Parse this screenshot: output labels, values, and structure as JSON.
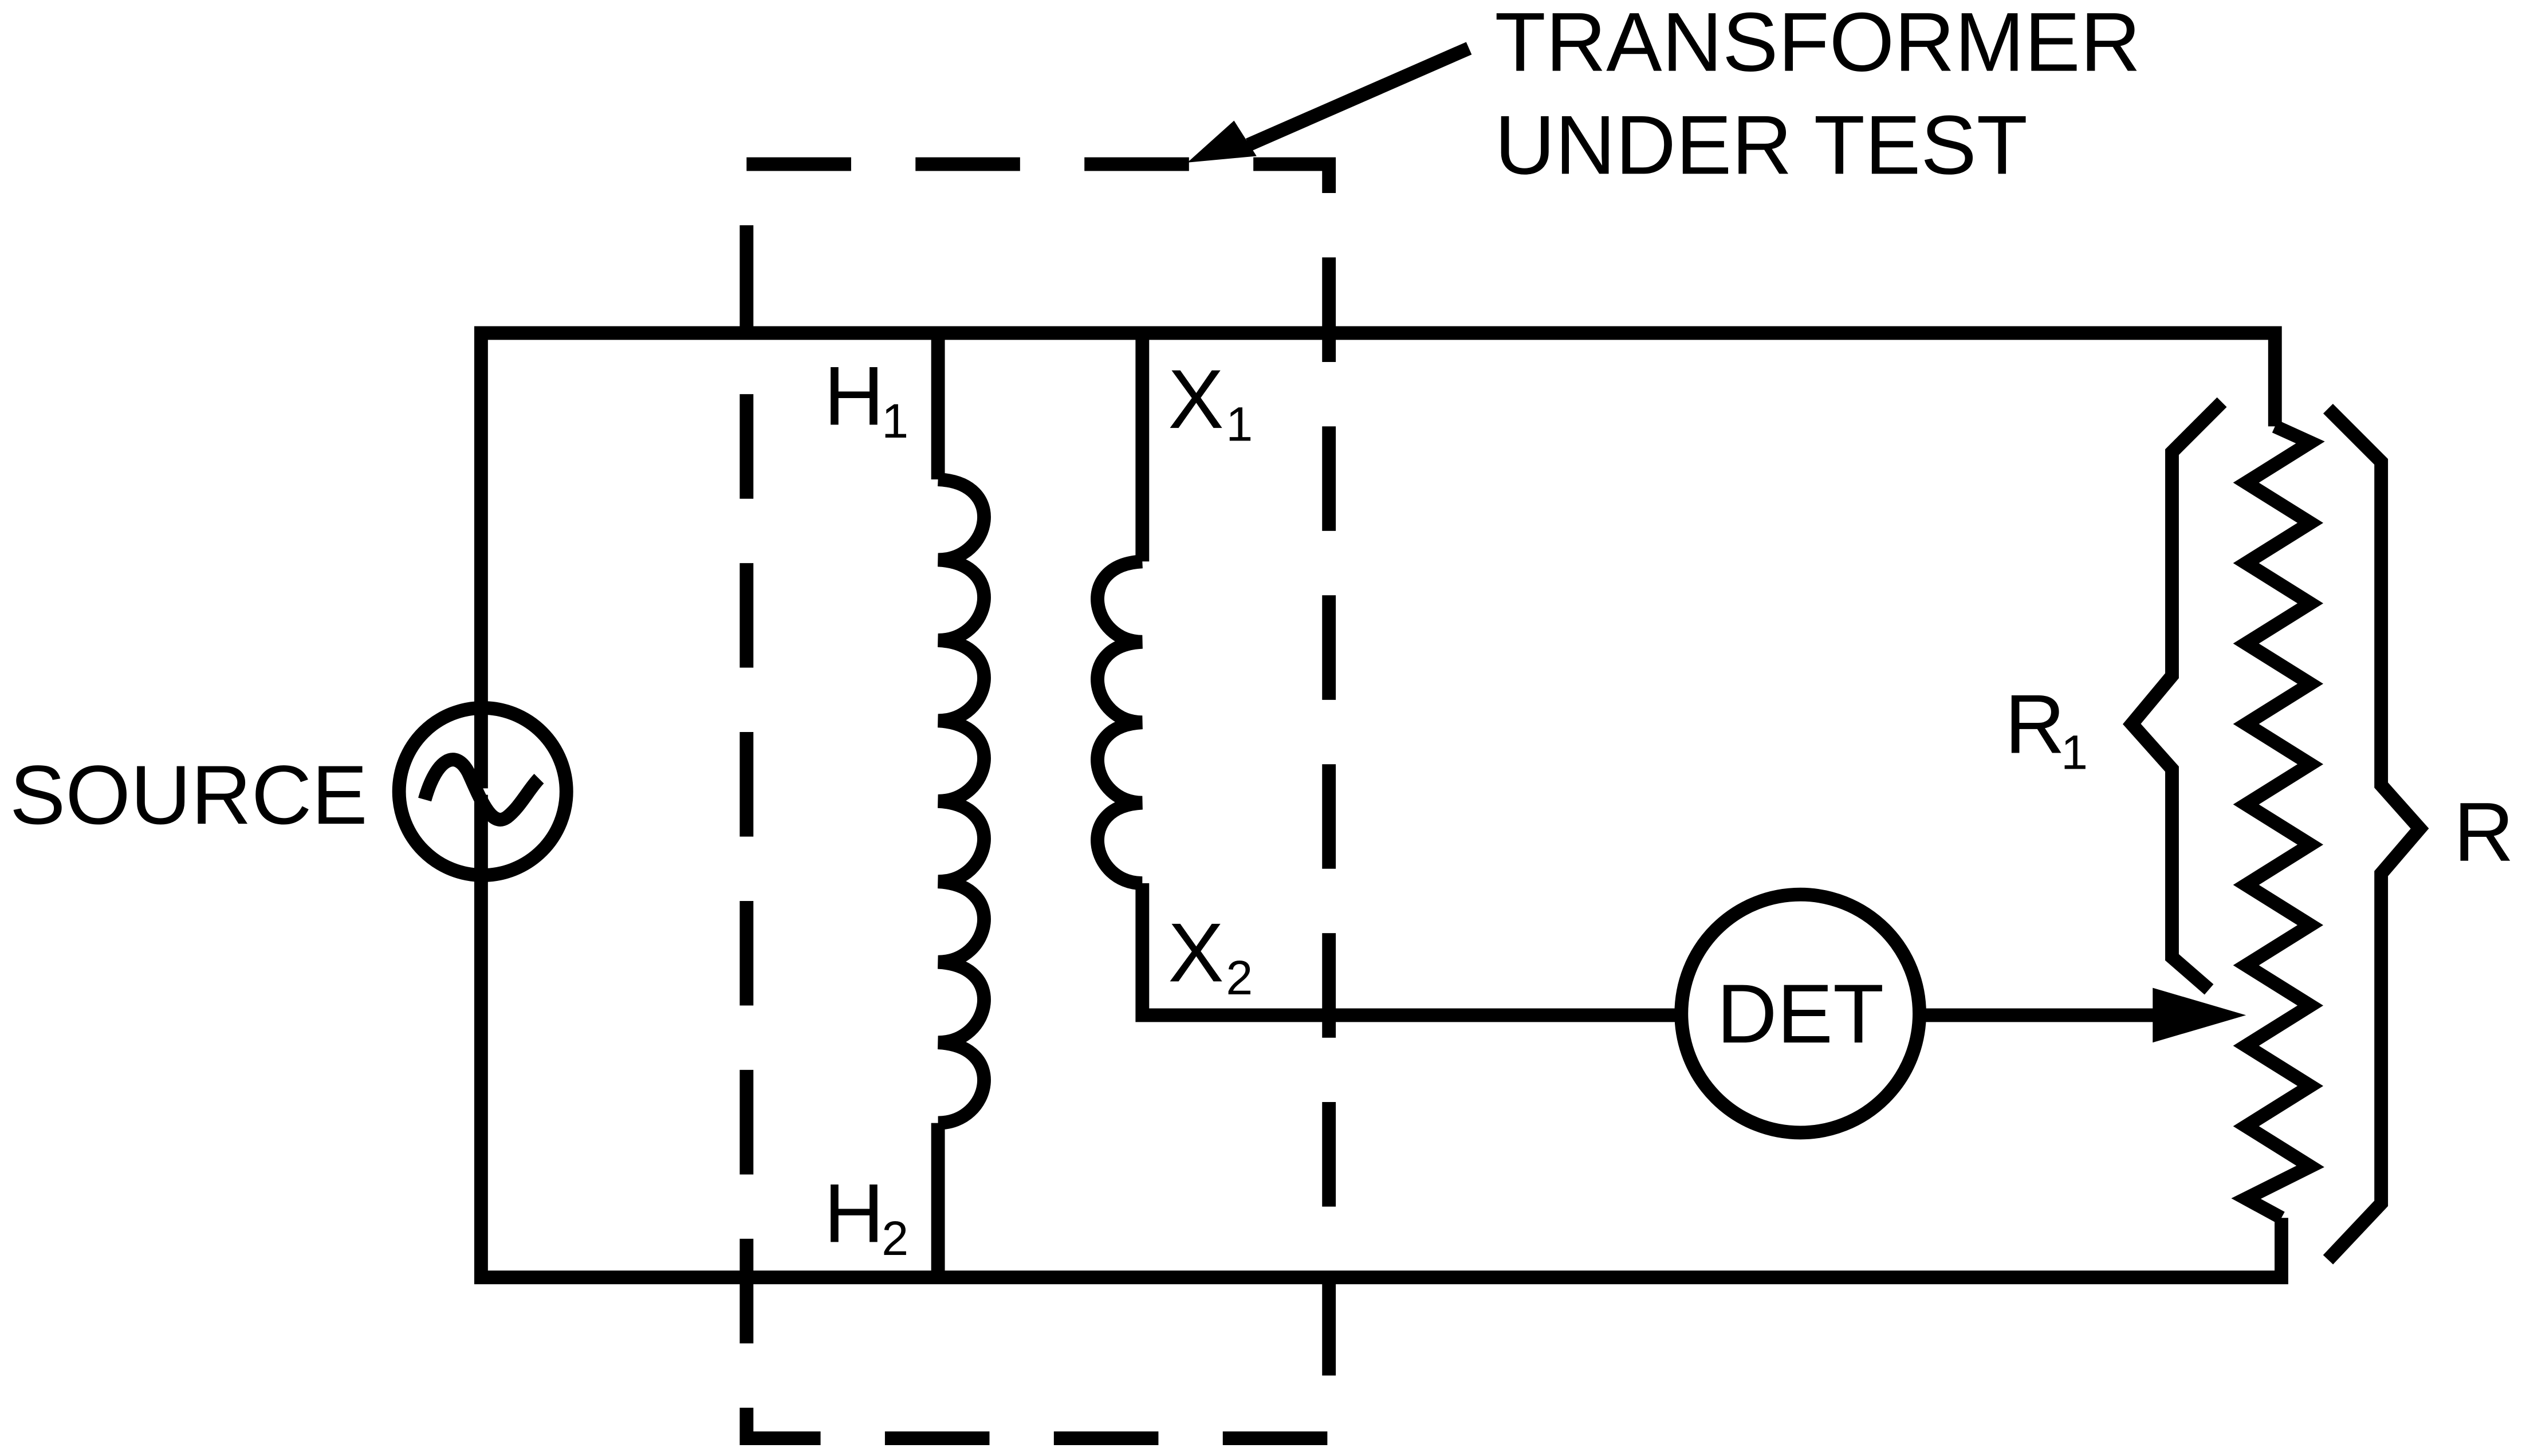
{
  "callout": {
    "line1": "TRANSFORMER",
    "line2": "UNDER TEST"
  },
  "source": {
    "label": "SOURCE"
  },
  "terminals": {
    "h1": {
      "main": "H",
      "sub": "1"
    },
    "h2": {
      "main": "H",
      "sub": "2"
    },
    "x1": {
      "main": "X",
      "sub": "1"
    },
    "x2": {
      "main": "X",
      "sub": "2"
    }
  },
  "detector": {
    "label": "DET"
  },
  "resistance": {
    "r1": {
      "main": "R",
      "sub": "1"
    },
    "r": "R"
  }
}
